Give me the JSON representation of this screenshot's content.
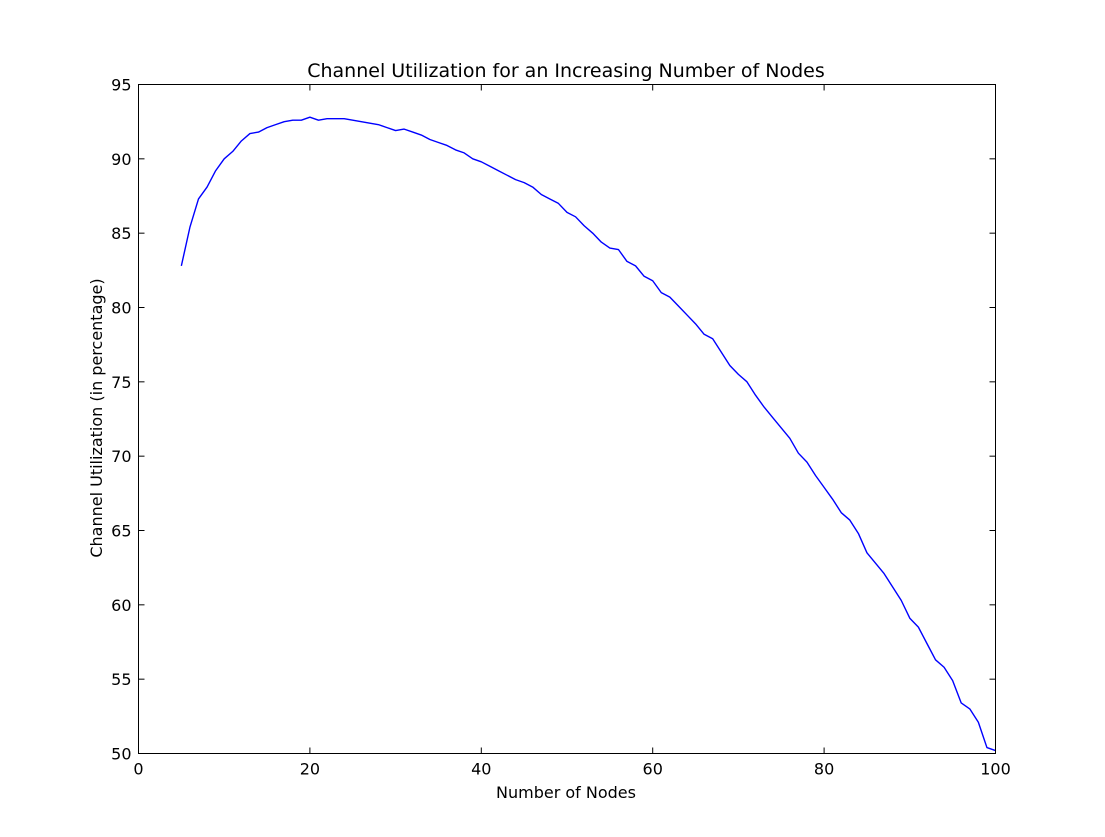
{
  "chart_data": {
    "type": "line",
    "title": "Channel Utilization for an Increasing Number of Nodes",
    "xlabel": "Number of Nodes",
    "ylabel": "Channel Utilization (in percentage)",
    "xlim": [
      0,
      100
    ],
    "ylim": [
      50,
      95
    ],
    "xticks": [
      0,
      20,
      40,
      60,
      80,
      100
    ],
    "yticks": [
      50,
      55,
      60,
      65,
      70,
      75,
      80,
      85,
      90,
      95
    ],
    "grid": false,
    "line_color": "#0000ff",
    "series": [
      {
        "x": [
          5,
          6,
          7,
          8,
          9,
          10,
          11,
          12,
          13,
          14,
          15,
          16,
          17,
          18,
          19,
          20,
          21,
          22,
          23,
          24,
          25,
          26,
          27,
          28,
          29,
          30,
          31,
          32,
          33,
          34,
          35,
          36,
          37,
          38,
          39,
          40,
          41,
          42,
          43,
          44,
          45,
          46,
          47,
          48,
          49,
          50,
          51,
          52,
          53,
          54,
          55,
          56,
          57,
          58,
          59,
          60,
          61,
          62,
          63,
          64,
          65,
          66,
          67,
          68,
          69,
          70,
          71,
          72,
          73,
          74,
          75,
          76,
          77,
          78,
          79,
          80,
          81,
          82,
          83,
          84,
          85,
          86,
          87,
          88,
          89,
          90,
          91,
          92,
          93,
          94,
          95,
          96,
          97,
          98,
          99,
          100
        ],
        "values": [
          82.8,
          85.4,
          87.3,
          88.1,
          89.2,
          90.0,
          90.5,
          91.2,
          91.7,
          91.8,
          92.1,
          92.3,
          92.5,
          92.6,
          92.6,
          92.8,
          92.6,
          92.7,
          92.7,
          92.7,
          92.6,
          92.5,
          92.4,
          92.3,
          92.1,
          91.9,
          92.0,
          91.8,
          91.6,
          91.3,
          91.1,
          90.9,
          90.6,
          90.4,
          90.0,
          89.8,
          89.5,
          89.2,
          88.9,
          88.6,
          88.4,
          88.1,
          87.6,
          87.3,
          87.0,
          86.4,
          86.1,
          85.5,
          85.0,
          84.4,
          84.0,
          83.9,
          83.1,
          82.8,
          82.1,
          81.8,
          81.0,
          80.7,
          80.1,
          79.5,
          78.9,
          78.2,
          77.9,
          77.0,
          76.1,
          75.5,
          75.0,
          74.1,
          73.3,
          72.6,
          71.9,
          71.2,
          70.2,
          69.6,
          68.7,
          67.9,
          67.1,
          66.2,
          65.7,
          64.8,
          63.5,
          62.8,
          62.1,
          61.2,
          60.3,
          59.1,
          58.5,
          57.4,
          56.3,
          55.8,
          54.9,
          53.4,
          53.0,
          52.1,
          50.4,
          50.2
        ]
      }
    ]
  }
}
